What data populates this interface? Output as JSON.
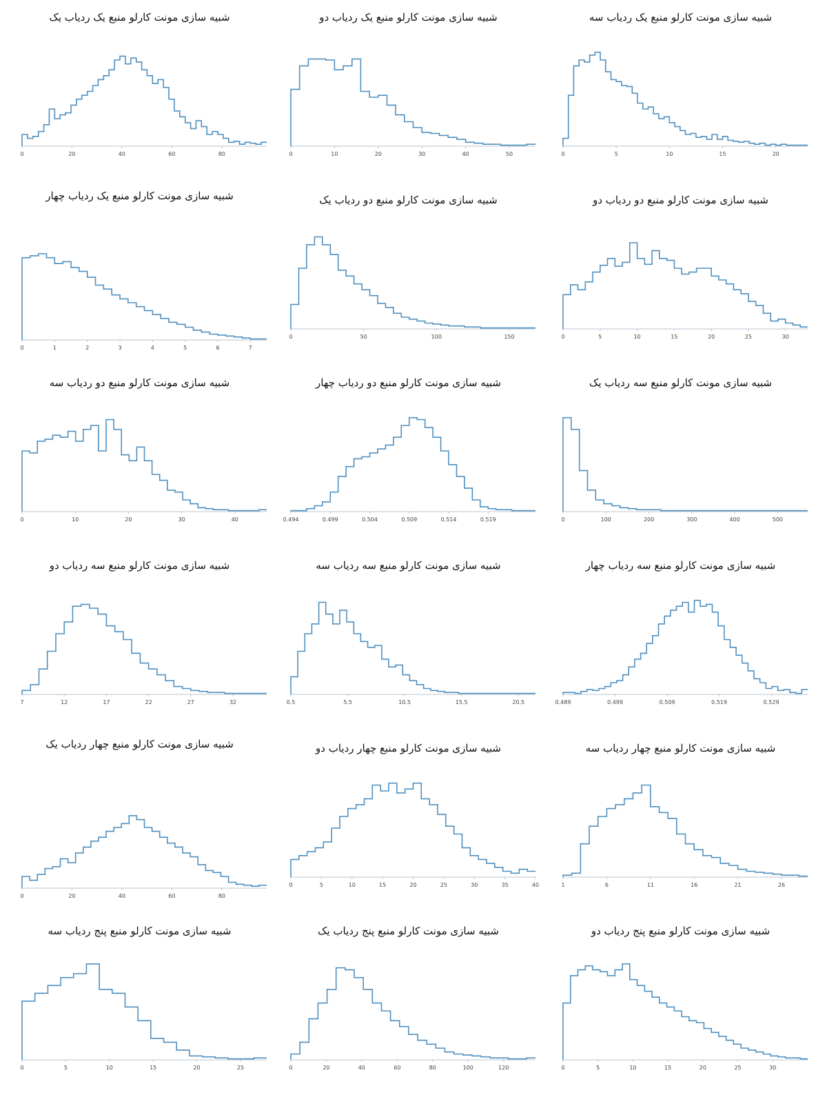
{
  "style": {
    "line_color": "#4f8fbf",
    "axis_color": "#b8c4d0"
  },
  "chart_data": [
    {
      "type": "histogram",
      "title": "شبیه سازی مونت کارلو منبع یک ردیاب سه",
      "xlabel": "",
      "ylabel": "",
      "xlim": [
        0,
        23
      ],
      "ticks": [
        0,
        5,
        10,
        15,
        20
      ],
      "tick_labels": [
        "0",
        "5",
        "10",
        "15",
        "20"
      ],
      "values": [
        0.08,
        0.52,
        0.82,
        0.88,
        0.86,
        0.93,
        0.96,
        0.88,
        0.76,
        0.68,
        0.66,
        0.62,
        0.61,
        0.54,
        0.44,
        0.38,
        0.4,
        0.33,
        0.28,
        0.3,
        0.24,
        0.2,
        0.16,
        0.12,
        0.13,
        0.09,
        0.1,
        0.07,
        0.12,
        0.07,
        0.1,
        0.06,
        0.05,
        0.04,
        0.05,
        0.03,
        0.02,
        0.03,
        0.01,
        0.02,
        0.01,
        0.02,
        0.01,
        0.01,
        0.01,
        0.01
      ]
    },
    {
      "type": "histogram",
      "title": "شبیه سازی مونت کارلو منبع یک ردیاب دو",
      "xlabel": "",
      "ylabel": "",
      "xlim": [
        0,
        56
      ],
      "ticks": [
        0,
        10,
        20,
        30,
        40,
        50
      ],
      "tick_labels": [
        "0",
        "10",
        "20",
        "30",
        "40",
        "50"
      ],
      "values": [
        0.58,
        0.82,
        0.89,
        0.89,
        0.88,
        0.78,
        0.82,
        0.89,
        0.56,
        0.5,
        0.52,
        0.42,
        0.32,
        0.25,
        0.19,
        0.14,
        0.13,
        0.11,
        0.09,
        0.07,
        0.04,
        0.03,
        0.02,
        0.02,
        0.01,
        0.01,
        0.01,
        0.02
      ]
    },
    {
      "type": "histogram",
      "title": "شبیه سازی مونت کارلو منبع یک ردیاب یک",
      "xlabel": "",
      "ylabel": "",
      "xlim": [
        0,
        98
      ],
      "ticks": [
        0,
        20,
        40,
        60,
        80
      ],
      "tick_labels": [
        "0",
        "20",
        "40",
        "60",
        "80"
      ],
      "values": [
        0.12,
        0.08,
        0.1,
        0.15,
        0.22,
        0.38,
        0.28,
        0.32,
        0.34,
        0.42,
        0.48,
        0.52,
        0.56,
        0.62,
        0.68,
        0.72,
        0.78,
        0.88,
        0.92,
        0.84,
        0.9,
        0.86,
        0.78,
        0.72,
        0.64,
        0.68,
        0.6,
        0.48,
        0.36,
        0.3,
        0.24,
        0.18,
        0.26,
        0.2,
        0.12,
        0.15,
        0.12,
        0.08,
        0.04,
        0.05,
        0.02,
        0.04,
        0.03,
        0.02,
        0.04
      ]
    },
    {
      "type": "histogram",
      "title": "شبیه سازی مونت کارلو منبع دو ردیاب دو",
      "xlabel": "",
      "ylabel": "",
      "xlim": [
        0,
        33
      ],
      "ticks": [
        0,
        5,
        10,
        15,
        20,
        25,
        30
      ],
      "tick_labels": [
        "0",
        "5",
        "10",
        "15",
        "20",
        "25",
        "30"
      ],
      "values": [
        0.35,
        0.45,
        0.4,
        0.48,
        0.58,
        0.65,
        0.72,
        0.64,
        0.68,
        0.88,
        0.72,
        0.66,
        0.8,
        0.72,
        0.7,
        0.62,
        0.56,
        0.58,
        0.62,
        0.62,
        0.54,
        0.5,
        0.46,
        0.4,
        0.36,
        0.28,
        0.24,
        0.16,
        0.08,
        0.1,
        0.06,
        0.04,
        0.02
      ]
    },
    {
      "type": "histogram",
      "title": "شبیه سازی مونت کارلو منبع دو ردیاب یک",
      "xlabel": "",
      "ylabel": "",
      "xlim": [
        0,
        168
      ],
      "ticks": [
        0,
        50,
        100,
        150
      ],
      "tick_labels": [
        "0",
        "50",
        "100",
        "150"
      ],
      "values": [
        0.25,
        0.62,
        0.86,
        0.94,
        0.86,
        0.76,
        0.6,
        0.54,
        0.46,
        0.4,
        0.34,
        0.26,
        0.22,
        0.16,
        0.12,
        0.1,
        0.08,
        0.06,
        0.05,
        0.04,
        0.03,
        0.03,
        0.02,
        0.02,
        0.01,
        0.01,
        0.01,
        0.01,
        0.01,
        0.01,
        0.01
      ]
    },
    {
      "type": "histogram",
      "title": "شبیه سازی مونت کارلو منبع یک ردیاب چهار",
      "xlabel": "",
      "ylabel": "",
      "xlim": [
        0,
        7.5
      ],
      "ticks": [
        0,
        1,
        2,
        3,
        4,
        5,
        6,
        7
      ],
      "tick_labels": [
        "0",
        "1",
        "2",
        "3",
        "4",
        "5",
        "6",
        "7"
      ],
      "values": [
        0.84,
        0.86,
        0.88,
        0.84,
        0.78,
        0.8,
        0.74,
        0.7,
        0.64,
        0.56,
        0.52,
        0.46,
        0.42,
        0.38,
        0.34,
        0.3,
        0.26,
        0.22,
        0.18,
        0.16,
        0.13,
        0.1,
        0.08,
        0.06,
        0.05,
        0.04,
        0.03,
        0.02,
        0.01,
        0.01
      ]
    },
    {
      "type": "histogram",
      "title": "شبیه سازی مونت کارلو منبع سه ردیاب یک",
      "xlabel": "",
      "ylabel": "",
      "xlim": [
        0,
        570
      ],
      "ticks": [
        0,
        100,
        200,
        300,
        400,
        500
      ],
      "tick_labels": [
        "0",
        "100",
        "200",
        "300",
        "400",
        "500"
      ],
      "values": [
        0.96,
        0.84,
        0.42,
        0.22,
        0.12,
        0.08,
        0.06,
        0.04,
        0.03,
        0.02,
        0.02,
        0.02,
        0.01,
        0.01,
        0.01,
        0.01,
        0.01,
        0.01,
        0.01,
        0.01,
        0.01,
        0.01,
        0.01,
        0.01,
        0.01,
        0.01,
        0.01,
        0.01,
        0.01,
        0.01
      ]
    },
    {
      "type": "histogram",
      "title": "شبیه سازی مونت کارلو منبع دو ردیاب چهار",
      "xlabel": "",
      "ylabel": "",
      "xlim": [
        0.494,
        0.525
      ],
      "ticks": [
        0.494,
        0.499,
        0.504,
        0.509,
        0.514,
        0.519
      ],
      "tick_labels": [
        "0.494",
        "0.499",
        "0.504",
        "0.509",
        "0.514",
        "0.519"
      ],
      "values": [
        0.01,
        0.01,
        0.03,
        0.06,
        0.1,
        0.2,
        0.36,
        0.46,
        0.54,
        0.56,
        0.6,
        0.64,
        0.68,
        0.76,
        0.88,
        0.96,
        0.94,
        0.86,
        0.76,
        0.62,
        0.48,
        0.36,
        0.24,
        0.12,
        0.05,
        0.03,
        0.02,
        0.02,
        0.01,
        0.01,
        0.01
      ]
    },
    {
      "type": "histogram",
      "title": "شبیه سازی مونت کارلو منبع دو ردیاب سه",
      "xlabel": "",
      "ylabel": "",
      "xlim": [
        0,
        46
      ],
      "ticks": [
        0,
        10,
        20,
        30,
        40
      ],
      "tick_labels": [
        "0",
        "10",
        "20",
        "30",
        "40"
      ],
      "values": [
        0.62,
        0.6,
        0.72,
        0.74,
        0.78,
        0.76,
        0.82,
        0.72,
        0.84,
        0.88,
        0.62,
        0.94,
        0.84,
        0.58,
        0.52,
        0.66,
        0.52,
        0.38,
        0.32,
        0.22,
        0.2,
        0.12,
        0.08,
        0.04,
        0.03,
        0.02,
        0.02,
        0.01,
        0.01,
        0.01,
        0.01,
        0.02
      ]
    },
    {
      "type": "histogram",
      "title": "شبیه سازی مونت کارلو منبع سه ردیاب چهار",
      "xlabel": "",
      "ylabel": "",
      "xlim": [
        0.489,
        0.536
      ],
      "ticks": [
        0.489,
        0.499,
        0.509,
        0.519,
        0.529
      ],
      "tick_labels": [
        "0.489",
        "0.499",
        "0.509",
        "0.519",
        "0.529"
      ],
      "values": [
        0.02,
        0.02,
        0.01,
        0.03,
        0.05,
        0.04,
        0.06,
        0.08,
        0.12,
        0.14,
        0.2,
        0.28,
        0.36,
        0.42,
        0.52,
        0.6,
        0.72,
        0.8,
        0.86,
        0.9,
        0.94,
        0.84,
        0.96,
        0.9,
        0.92,
        0.84,
        0.7,
        0.56,
        0.48,
        0.4,
        0.32,
        0.24,
        0.16,
        0.12,
        0.06,
        0.08,
        0.04,
        0.05,
        0.02,
        0.01,
        0.05
      ]
    },
    {
      "type": "histogram",
      "title": "شبیه سازی مونت کارلو منبع سه ردیاب سه",
      "xlabel": "",
      "ylabel": "",
      "xlim": [
        0.5,
        22
      ],
      "ticks": [
        0.5,
        5.5,
        10.5,
        15.5,
        20.5
      ],
      "tick_labels": [
        "0.5",
        "5.5",
        "10.5",
        "15.5",
        "20.5"
      ],
      "values": [
        0.18,
        0.44,
        0.62,
        0.72,
        0.94,
        0.82,
        0.72,
        0.86,
        0.74,
        0.62,
        0.54,
        0.48,
        0.5,
        0.36,
        0.28,
        0.3,
        0.2,
        0.14,
        0.1,
        0.06,
        0.04,
        0.03,
        0.02,
        0.02,
        0.01,
        0.01,
        0.01,
        0.01,
        0.01,
        0.01,
        0.01,
        0.01,
        0.01,
        0.01,
        0.01
      ]
    },
    {
      "type": "histogram",
      "title": "شبیه سازی مونت کارلو منبع سه ردیاب دو",
      "xlabel": "",
      "ylabel": "",
      "xlim": [
        7,
        36
      ],
      "ticks": [
        7,
        12,
        17,
        22,
        27,
        32
      ],
      "tick_labels": [
        "7",
        "12",
        "17",
        "22",
        "27",
        "32"
      ],
      "values": [
        0.04,
        0.1,
        0.26,
        0.44,
        0.62,
        0.74,
        0.9,
        0.92,
        0.88,
        0.82,
        0.7,
        0.64,
        0.56,
        0.42,
        0.32,
        0.26,
        0.2,
        0.14,
        0.08,
        0.06,
        0.04,
        0.03,
        0.02,
        0.02,
        0.01,
        0.01,
        0.01,
        0.01,
        0.01
      ]
    },
    {
      "type": "histogram",
      "title": "شبیه سازی مونت کارلو منبع چهار ردیاب سه",
      "xlabel": "",
      "ylabel": "",
      "xlim": [
        1,
        29
      ],
      "ticks": [
        1,
        6,
        11,
        16,
        21,
        26
      ],
      "tick_labels": [
        "1",
        "6",
        "11",
        "16",
        "21",
        "26"
      ],
      "values": [
        0.02,
        0.04,
        0.34,
        0.52,
        0.62,
        0.7,
        0.74,
        0.8,
        0.86,
        0.94,
        0.72,
        0.66,
        0.6,
        0.44,
        0.34,
        0.28,
        0.22,
        0.2,
        0.14,
        0.12,
        0.08,
        0.06,
        0.05,
        0.04,
        0.03,
        0.02,
        0.02,
        0.01
      ]
    },
    {
      "type": "histogram",
      "title": "شبیه سازی مونت کارلو منبع چهار ردیاب دو",
      "xlabel": "",
      "ylabel": "",
      "xlim": [
        0,
        40
      ],
      "ticks": [
        0,
        5,
        10,
        15,
        20,
        25,
        30,
        35,
        40
      ],
      "tick_labels": [
        "0",
        "5",
        "10",
        "15",
        "20",
        "25",
        "30",
        "35",
        "40"
      ],
      "values": [
        0.18,
        0.22,
        0.26,
        0.3,
        0.36,
        0.5,
        0.62,
        0.7,
        0.74,
        0.8,
        0.94,
        0.88,
        0.96,
        0.86,
        0.9,
        0.96,
        0.8,
        0.74,
        0.64,
        0.52,
        0.44,
        0.3,
        0.22,
        0.18,
        0.14,
        0.1,
        0.06,
        0.04,
        0.08,
        0.06
      ]
    },
    {
      "type": "histogram",
      "title": "شبیه سازی مونت کارلو منبع چهار ردیاب یک",
      "xlabel": "",
      "ylabel": "",
      "xlim": [
        0,
        98
      ],
      "ticks": [
        0,
        20,
        40,
        60,
        80
      ],
      "tick_labels": [
        "0",
        "20",
        "40",
        "60",
        "80"
      ],
      "values": [
        0.12,
        0.08,
        0.14,
        0.2,
        0.22,
        0.3,
        0.26,
        0.36,
        0.42,
        0.48,
        0.52,
        0.58,
        0.62,
        0.66,
        0.74,
        0.7,
        0.62,
        0.58,
        0.52,
        0.46,
        0.42,
        0.36,
        0.32,
        0.24,
        0.18,
        0.16,
        0.12,
        0.06,
        0.04,
        0.03,
        0.02,
        0.03
      ]
    },
    {
      "type": "histogram",
      "title": "شبیه سازی مونت کارلو منبع پنج ردیاب دو",
      "xlabel": "",
      "ylabel": "",
      "xlim": [
        0,
        35
      ],
      "ticks": [
        0,
        5,
        10,
        15,
        20,
        25,
        30
      ],
      "tick_labels": [
        "0",
        "5",
        "10",
        "15",
        "20",
        "25",
        "30"
      ],
      "values": [
        0.58,
        0.86,
        0.92,
        0.96,
        0.92,
        0.9,
        0.86,
        0.92,
        0.98,
        0.82,
        0.76,
        0.7,
        0.64,
        0.58,
        0.54,
        0.5,
        0.44,
        0.4,
        0.38,
        0.32,
        0.28,
        0.24,
        0.2,
        0.16,
        0.12,
        0.1,
        0.08,
        0.06,
        0.04,
        0.03,
        0.02,
        0.02,
        0.01
      ]
    },
    {
      "type": "histogram",
      "title": "شبیه سازی مونت کارلو منبع پنج ردیاب یک",
      "xlabel": "",
      "ylabel": "",
      "xlim": [
        0,
        138
      ],
      "ticks": [
        0,
        20,
        40,
        60,
        80,
        100,
        120
      ],
      "tick_labels": [
        "0",
        "20",
        "40",
        "60",
        "80",
        "100",
        "120"
      ],
      "values": [
        0.06,
        0.18,
        0.42,
        0.58,
        0.72,
        0.94,
        0.92,
        0.84,
        0.72,
        0.58,
        0.5,
        0.4,
        0.34,
        0.26,
        0.2,
        0.16,
        0.12,
        0.08,
        0.06,
        0.05,
        0.04,
        0.03,
        0.02,
        0.02,
        0.01,
        0.01,
        0.02
      ]
    },
    {
      "type": "histogram",
      "title": "شبیه سازی مونت کارلو منبع پنج ردیاب سه",
      "xlabel": "",
      "ylabel": "",
      "xlim": [
        0,
        28
      ],
      "ticks": [
        0,
        5,
        10,
        15,
        20,
        25
      ],
      "tick_labels": [
        "0",
        "5",
        "10",
        "15",
        "20",
        "25"
      ],
      "values": [
        0.6,
        0.68,
        0.76,
        0.84,
        0.88,
        0.98,
        0.72,
        0.68,
        0.54,
        0.4,
        0.22,
        0.18,
        0.1,
        0.04,
        0.03,
        0.02,
        0.01,
        0.01,
        0.02
      ]
    }
  ]
}
